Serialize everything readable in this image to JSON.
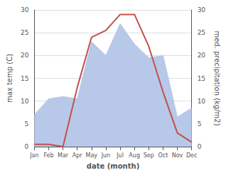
{
  "chart_data": {
    "type": "line",
    "xlabel": "date (month)",
    "ylabel": "max temp (C)",
    "y2label": "med. precipitation (kg/m2)",
    "categories": [
      "Jan",
      "Feb",
      "Mar",
      "Apr",
      "May",
      "Jun",
      "Jul",
      "Aug",
      "Sep",
      "Oct",
      "Nov",
      "Dec"
    ],
    "series": [
      {
        "type": "area",
        "axis": "y2",
        "color": "#b8c8e8",
        "values": [
          7.0,
          10.5,
          11.0,
          10.5,
          23.0,
          20.0,
          27.0,
          22.5,
          19.5,
          20.0,
          6.5,
          8.5
        ]
      },
      {
        "type": "line",
        "color": "#c0504d",
        "values": [
          0.5,
          0.5,
          0.0,
          13.0,
          24.0,
          25.5,
          29.0,
          29.0,
          22.0,
          12.0,
          3.0,
          1.0
        ]
      }
    ],
    "ylim": [
      0,
      30
    ],
    "yticks": [
      0,
      5,
      10,
      15,
      20,
      25,
      30
    ],
    "y2lim": [
      0,
      30
    ],
    "y2ticks": [
      0,
      5,
      10,
      15,
      20,
      25,
      30
    ],
    "grid": true
  }
}
